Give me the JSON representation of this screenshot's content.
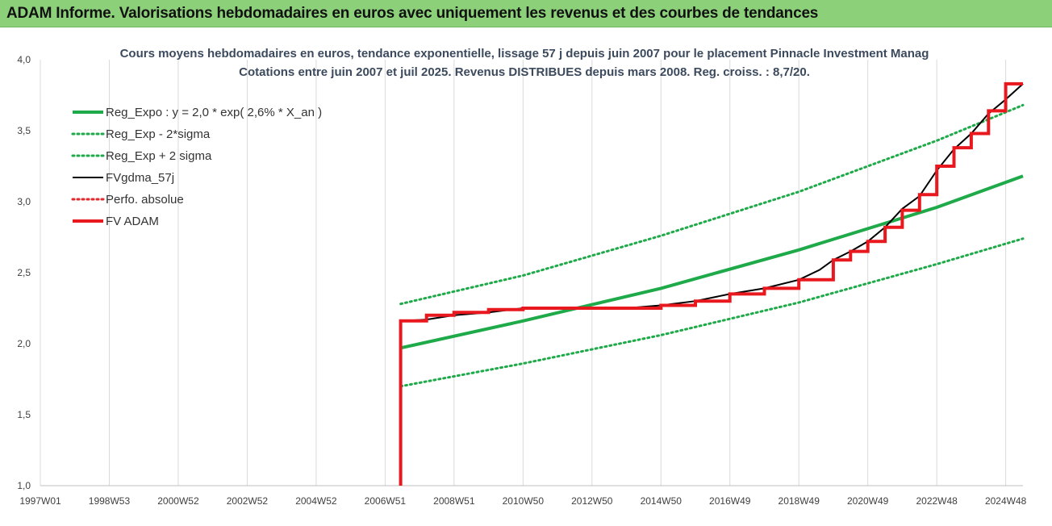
{
  "header": {
    "title": "ADAM Informe. Valorisations hebdomadaires en euros avec uniquement les revenus et des courbes de tendances"
  },
  "chart_data": {
    "type": "line",
    "title": "Cours moyens hebdomadaires en euros, tendance exponentielle, lissage 57 j depuis juin 2007 pour le placement Pinnacle Investment Manag",
    "subtitle": "Cotations entre juin 2007 et juil 2025.  Revenus DISTRIBUES depuis mars 2008. Reg. croiss. : 8,7/20.",
    "xlabel": "",
    "ylabel": "",
    "x_tick_labels": [
      "1997W01",
      "1998W53",
      "2000W52",
      "2002W52",
      "2004W52",
      "2006W51",
      "2008W51",
      "2010W50",
      "2012W50",
      "2014W50",
      "2016W49",
      "2018W49",
      "2020W49",
      "2022W48",
      "2024W48"
    ],
    "x_tick_years": [
      1997.0,
      1999.0,
      2001.0,
      2003.0,
      2005.0,
      2007.0,
      2009.0,
      2011.0,
      2013.0,
      2015.0,
      2017.0,
      2019.0,
      2021.0,
      2023.0,
      2025.0
    ],
    "xlim": [
      1997.0,
      2025.5
    ],
    "ylim": [
      1.0,
      4.0
    ],
    "y_ticks": [
      1.0,
      1.5,
      2.0,
      2.5,
      3.0,
      3.5,
      4.0
    ],
    "y_tick_labels": [
      "1,0",
      "1,5",
      "2,0",
      "2,5",
      "3,0",
      "3,5",
      "4,0"
    ],
    "grid": true,
    "legend_position": "top-left",
    "series": [
      {
        "name": "Reg_Expo : y = 2,0 * exp( 2,6% *  X_an )",
        "color": "#1faa4a",
        "style": "solid",
        "x": [
          2007.45,
          2011.0,
          2015.0,
          2019.0,
          2023.0,
          2025.5
        ],
        "y": [
          1.97,
          2.16,
          2.39,
          2.66,
          2.96,
          3.18
        ]
      },
      {
        "name": "Reg_Exp - 2*sigma",
        "color": "#1faa4a",
        "style": "dotted",
        "x": [
          2007.45,
          2011.0,
          2015.0,
          2019.0,
          2023.0,
          2025.5
        ],
        "y": [
          2.28,
          2.48,
          2.76,
          3.07,
          3.43,
          3.68
        ]
      },
      {
        "name": "Reg_Exp + 2 sigma",
        "color": "#1faa4a",
        "style": "dotted",
        "x": [
          2007.45,
          2011.0,
          2015.0,
          2019.0,
          2023.0,
          2025.5
        ],
        "y": [
          1.7,
          1.86,
          2.06,
          2.29,
          2.56,
          2.74
        ]
      },
      {
        "name": "FVgdma_57j",
        "color": "#000000",
        "style": "solid",
        "x": [
          2007.5,
          2008.2,
          2009.0,
          2010.0,
          2011.0,
          2012.0,
          2013.0,
          2014.0,
          2015.0,
          2016.0,
          2017.0,
          2018.0,
          2019.0,
          2019.6,
          2020.0,
          2020.5,
          2021.0,
          2021.5,
          2022.0,
          2022.5,
          2023.0,
          2023.5,
          2024.0,
          2024.5,
          2025.0,
          2025.5
        ],
        "y": [
          2.16,
          2.17,
          2.2,
          2.22,
          2.25,
          2.25,
          2.25,
          2.25,
          2.27,
          2.3,
          2.35,
          2.39,
          2.45,
          2.52,
          2.59,
          2.65,
          2.72,
          2.82,
          2.95,
          3.04,
          3.22,
          3.37,
          3.48,
          3.62,
          3.72,
          3.83
        ]
      },
      {
        "name": "Perfo. absolue",
        "color": "#e8272b",
        "style": "dotted",
        "x": [],
        "y": []
      },
      {
        "name": "FV ADAM",
        "color": "#e8181e",
        "style": "solid",
        "x": [
          2007.45,
          2007.45,
          2008.2,
          2008.2,
          2009.0,
          2009.0,
          2010.0,
          2010.0,
          2011.0,
          2011.0,
          2015.0,
          2015.0,
          2016.0,
          2016.0,
          2017.0,
          2017.0,
          2018.0,
          2018.0,
          2019.0,
          2019.0,
          2020.0,
          2020.0,
          2020.5,
          2020.5,
          2021.0,
          2021.0,
          2021.5,
          2021.5,
          2022.0,
          2022.0,
          2022.5,
          2022.5,
          2023.0,
          2023.0,
          2023.5,
          2023.5,
          2024.0,
          2024.0,
          2024.5,
          2024.5,
          2025.0,
          2025.0,
          2025.5
        ],
        "y": [
          1.0,
          2.16,
          2.16,
          2.2,
          2.2,
          2.22,
          2.22,
          2.24,
          2.24,
          2.25,
          2.25,
          2.27,
          2.27,
          2.3,
          2.3,
          2.35,
          2.35,
          2.39,
          2.39,
          2.45,
          2.45,
          2.59,
          2.59,
          2.65,
          2.65,
          2.72,
          2.72,
          2.82,
          2.82,
          2.94,
          2.94,
          3.05,
          3.05,
          3.25,
          3.25,
          3.38,
          3.38,
          3.48,
          3.48,
          3.64,
          3.64,
          3.83,
          3.83
        ]
      }
    ]
  }
}
